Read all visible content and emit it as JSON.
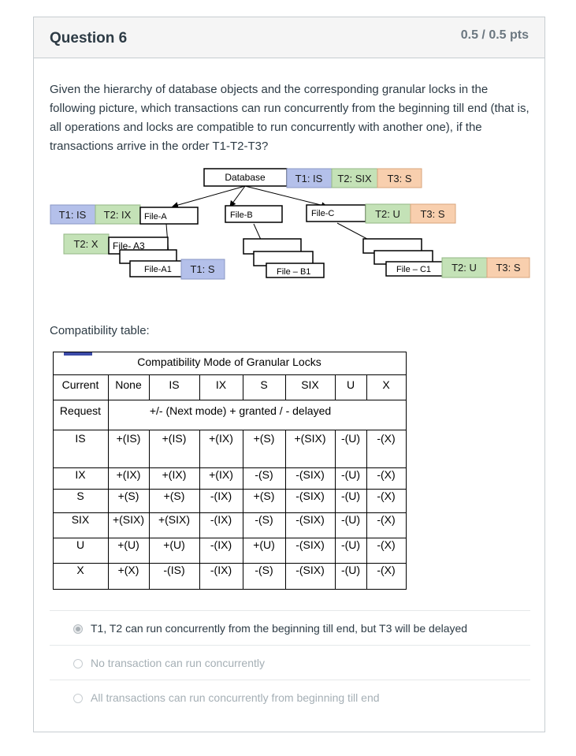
{
  "question": {
    "title": "Question 6",
    "points": "0.5 / 0.5 pts",
    "text": "Given the hierarchy of database objects and the corresponding granular locks in the following picture, which transactions can run concurrently from the beginning till end (that is, all operations and locks are compatible to run concurrently with another one), if the transactions arrive in the order T1-T2-T3?"
  },
  "diagram": {
    "database": {
      "label": "Database",
      "locks": [
        "T1: IS",
        "T2: SIX",
        "T3: S"
      ]
    },
    "file_a": {
      "label": "File-A",
      "locks": [
        "T1: IS",
        "T2: IX"
      ]
    },
    "file_b": {
      "label": "File-B"
    },
    "file_c": {
      "label": "File-C",
      "locks": [
        "T2: U",
        "T3: S"
      ]
    },
    "file_a3": {
      "label": "File- A3",
      "locks": [
        "T2: X"
      ]
    },
    "file_a1": {
      "label": "File-A1",
      "locks": [
        "T1: S"
      ]
    },
    "file_b1": {
      "label": "File – B1"
    },
    "file_c1": {
      "label": "File – C1",
      "locks": [
        "T2: U",
        "T3: S"
      ]
    },
    "colors": {
      "t1": "#b4c0ea",
      "t2": "#c4e2b7",
      "t3": "#f8cfae"
    }
  },
  "compatibility": {
    "heading": "Compatibility table:",
    "table_title": "Compatibility Mode of Granular Locks",
    "current_label": "Current",
    "request_label": "Request",
    "columns": [
      "None",
      "IS",
      "IX",
      "S",
      "SIX",
      "U",
      "X"
    ],
    "legend": "+/- (Next mode) + granted / - delayed",
    "rows": [
      {
        "mode": "IS",
        "cells": [
          "+(IS)",
          "+(IS)",
          "+(IX)",
          "+(S)",
          "+(SIX)",
          "-(U)",
          "-(X)"
        ]
      },
      {
        "mode": "IX",
        "cells": [
          "+(IX)",
          "+(IX)",
          "+(IX)",
          "-(S)",
          "-(SIX)",
          "-(U)",
          "-(X)"
        ]
      },
      {
        "mode": "S",
        "cells": [
          "+(S)",
          "+(S)",
          "-(IX)",
          "+(S)",
          "-(SIX)",
          "-(U)",
          "-(X)"
        ]
      },
      {
        "mode": "SIX",
        "cells": [
          "+(SIX)",
          "+(SIX)",
          "-(IX)",
          "-(S)",
          "-(SIX)",
          "-(U)",
          "-(X)"
        ]
      },
      {
        "mode": "U",
        "cells": [
          "+(U)",
          "+(U)",
          "-(IX)",
          "+(U)",
          "-(SIX)",
          "-(U)",
          "-(X)"
        ]
      },
      {
        "mode": "X",
        "cells": [
          "+(X)",
          "-(IS)",
          "-(IX)",
          "-(S)",
          "-(SIX)",
          "-(U)",
          "-(X)"
        ]
      }
    ]
  },
  "answers": [
    {
      "label": "T1, T2 can run concurrently from the beginning till end, but T3 will be delayed",
      "selected": true
    },
    {
      "label": "No transaction can run concurrently",
      "selected": false
    },
    {
      "label": "All transactions can run concurrently from beginning till end",
      "selected": false
    }
  ]
}
